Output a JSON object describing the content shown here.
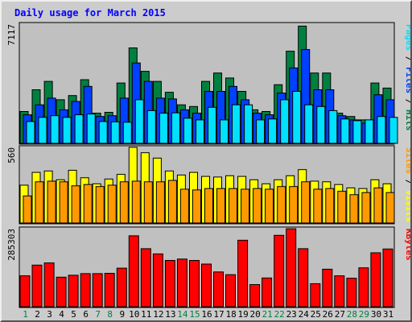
{
  "chart_data": {
    "type": "bar",
    "title": "Daily usage for March 2015",
    "days": [
      "1",
      "2",
      "3",
      "4",
      "5",
      "6",
      "7",
      "8",
      "9",
      "10",
      "11",
      "12",
      "13",
      "14",
      "15",
      "16",
      "17",
      "18",
      "19",
      "20",
      "21",
      "22",
      "23",
      "24",
      "25",
      "26",
      "27",
      "28",
      "29",
      "30",
      "31"
    ],
    "weekend_days": [
      "1",
      "7",
      "8",
      "14",
      "15",
      "21",
      "22",
      "28",
      "29"
    ],
    "panels": {
      "top": {
        "max_label": "7117",
        "ylim": [
          0,
          7117
        ],
        "legend": [
          "Pages",
          "Files",
          "Hits"
        ],
        "series": [
          {
            "name": "Hits",
            "color": "#008040",
            "values": [
              1900,
              3200,
              3700,
              2600,
              2850,
              3800,
              1800,
              1850,
              3600,
              5700,
              4300,
              3700,
              3050,
              2300,
              2200,
              3700,
              4200,
              3900,
              3100,
              2000,
              1900,
              3500,
              5500,
              7000,
              4200,
              4200,
              1800,
              1600,
              1400,
              3600,
              3300
            ]
          },
          {
            "name": "Files",
            "color": "#0040ff",
            "values": [
              1700,
              2300,
              2700,
              2000,
              2500,
              3400,
              1600,
              1650,
              2700,
              4800,
              3700,
              2700,
              2650,
              2000,
              1800,
              3100,
              3100,
              3400,
              2600,
              1800,
              1700,
              3000,
              4500,
              5600,
              3200,
              3200,
              1650,
              1400,
              1200,
              2900,
              2600
            ]
          },
          {
            "name": "Pages",
            "color": "#00e0ff",
            "values": [
              1300,
              1550,
              1650,
              1550,
              1700,
              1750,
              1300,
              1280,
              1260,
              2600,
              1950,
              1800,
              1820,
              1500,
              1400,
              2150,
              1400,
              2300,
              2300,
              1400,
              1450,
              2600,
              3100,
              2300,
              2200,
              1950,
              1450,
              1350,
              1400,
              1600,
              1550
            ]
          }
        ]
      },
      "middle": {
        "max_label": "560",
        "ylim": [
          0,
          560
        ],
        "legend": [
          "Sites",
          "Visits"
        ],
        "series": [
          {
            "name": "Visits",
            "color": "#ffff00",
            "values": [
              280,
              375,
              385,
              320,
              390,
              335,
              290,
              325,
              360,
              560,
              520,
              480,
              385,
              355,
              375,
              345,
              340,
              350,
              345,
              320,
              290,
              320,
              350,
              395,
              310,
              305,
              285,
              260,
              255,
              320,
              290
            ]
          },
          {
            "name": "Sites",
            "color": "#ff9900",
            "values": [
              200,
              305,
              310,
              305,
              275,
              285,
              270,
              280,
              305,
              310,
              305,
              305,
              315,
              250,
              245,
              255,
              255,
              255,
              250,
              255,
              250,
              270,
              270,
              305,
              250,
              255,
              235,
              210,
              225,
              260,
              225
            ]
          }
        ]
      },
      "bottom": {
        "max_label": "285303",
        "ylim": [
          0,
          285303
        ],
        "legend": [
          "KBytes"
        ],
        "series": [
          {
            "name": "KBytes",
            "color": "#ff0000",
            "values": [
              113000,
              152000,
              160000,
              108000,
              115000,
              121000,
              121000,
              122000,
              141000,
              259000,
              212000,
              193000,
              169000,
              174000,
              169000,
              156000,
              127000,
              117000,
              243000,
              81000,
              105000,
              261000,
              285000,
              212000,
              84000,
              137000,
              113000,
              104000,
              142000,
              197000,
              211000
            ]
          }
        ]
      }
    }
  }
}
